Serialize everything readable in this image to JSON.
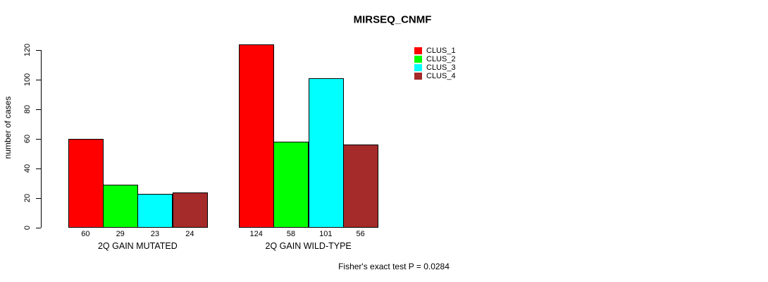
{
  "figure": {
    "background_color": "#FFFFFF",
    "text_color": "#000000"
  },
  "chart_data": {
    "type": "bar",
    "title": "MIRSEQ_CNMF",
    "ylabel": "number of cases",
    "xlabel": "",
    "categories": [
      "2Q GAIN MUTATED",
      "2Q GAIN WILD-TYPE"
    ],
    "series": [
      {
        "name": "CLUS_1",
        "color": "#FF0000",
        "values": [
          60,
          124
        ]
      },
      {
        "name": "CLUS_2",
        "color": "#00FF00",
        "values": [
          29,
          58
        ]
      },
      {
        "name": "CLUS_3",
        "color": "#00FFFF",
        "values": [
          23,
          101
        ]
      },
      {
        "name": "CLUS_4",
        "color": "#A52A2A",
        "values": [
          24,
          56
        ]
      }
    ],
    "bar_values_shown": true,
    "ylim": [
      0,
      124
    ],
    "yticks": [
      0,
      20,
      40,
      60,
      80,
      100,
      120
    ],
    "grid": false,
    "legend_position": "top-right",
    "annotation": "Fisher's exact test P = 0.0284"
  }
}
